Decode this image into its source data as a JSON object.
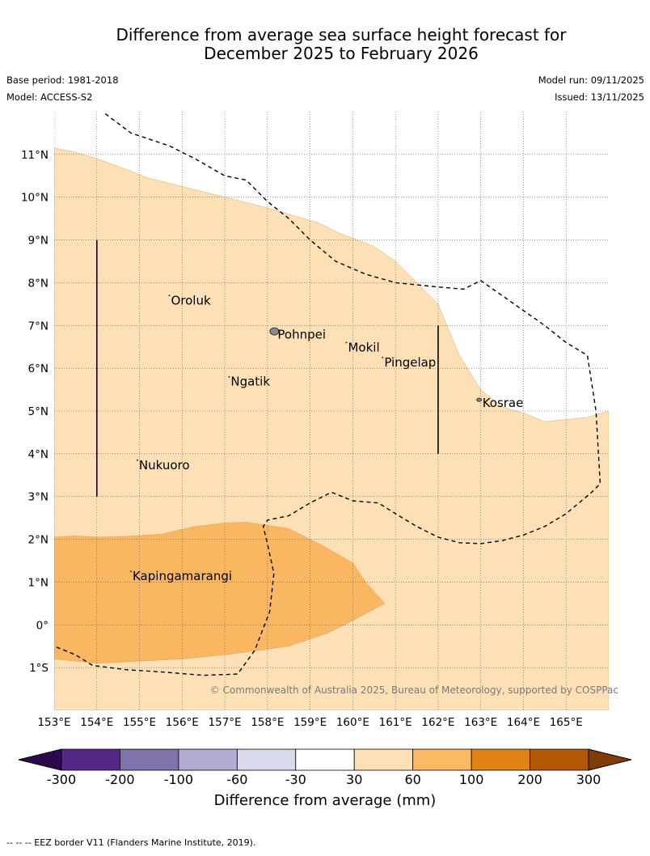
{
  "title": {
    "line1": "Difference from average sea surface height forecast for",
    "line2": "December 2025 to February 2026"
  },
  "meta": {
    "base_period": "Base period: 1981-2018",
    "model": "Model: ACCESS-S2",
    "model_run": "Model run: 09/11/2025",
    "issued": "Issued: 13/11/2025"
  },
  "map": {
    "lon_range": [
      153,
      166
    ],
    "lat_range": [
      -2,
      12
    ],
    "lon_ticks": [
      {
        "value": 153,
        "label": "153°E"
      },
      {
        "value": 154,
        "label": "154°E"
      },
      {
        "value": 155,
        "label": "155°E"
      },
      {
        "value": 156,
        "label": "156°E"
      },
      {
        "value": 157,
        "label": "157°E"
      },
      {
        "value": 158,
        "label": "158°E"
      },
      {
        "value": 159,
        "label": "159°E"
      },
      {
        "value": 160,
        "label": "160°E"
      },
      {
        "value": 161,
        "label": "161°E"
      },
      {
        "value": 162,
        "label": "162°E"
      },
      {
        "value": 163,
        "label": "163°E"
      },
      {
        "value": 164,
        "label": "164°E"
      },
      {
        "value": 165,
        "label": "165°E"
      }
    ],
    "lat_ticks": [
      {
        "value": 11,
        "label": "11°N"
      },
      {
        "value": 10,
        "label": "10°N"
      },
      {
        "value": 9,
        "label": "9°N"
      },
      {
        "value": 8,
        "label": "8°N"
      },
      {
        "value": 7,
        "label": "7°N"
      },
      {
        "value": 6,
        "label": "6°N"
      },
      {
        "value": 5,
        "label": "5°N"
      },
      {
        "value": 4,
        "label": "4°N"
      },
      {
        "value": 3,
        "label": "3°N"
      },
      {
        "value": 2,
        "label": "2°N"
      },
      {
        "value": 1,
        "label": "1°N"
      },
      {
        "value": 0,
        "label": "0°"
      },
      {
        "value": -1,
        "label": "1°S"
      }
    ],
    "places": [
      {
        "name": "Oroluk",
        "lon": 155.7,
        "lat": 7.7
      },
      {
        "name": "Pohnpei",
        "lon": 158.2,
        "lat": 6.9
      },
      {
        "name": "Mokil",
        "lon": 159.85,
        "lat": 6.6
      },
      {
        "name": "Pingelap",
        "lon": 160.7,
        "lat": 6.25
      },
      {
        "name": "Ngatik",
        "lon": 157.1,
        "lat": 5.8
      },
      {
        "name": "Kosrae",
        "lon": 163.0,
        "lat": 5.3
      },
      {
        "name": "Nukuoro",
        "lon": 154.95,
        "lat": 3.85
      },
      {
        "name": "Kapingamarangi",
        "lon": 154.8,
        "lat": 1.25
      }
    ],
    "copyright": "© Commonwealth of Australia 2025, Bureau of Meteorology, supported by COSPPac",
    "regions": [
      {
        "name": "anomaly-30-60",
        "color": "#fde0b6",
        "points": [
          [
            153,
            11.15
          ],
          [
            153.5,
            11.05
          ],
          [
            154,
            10.9
          ],
          [
            154.7,
            10.65
          ],
          [
            155.2,
            10.45
          ],
          [
            156,
            10.25
          ],
          [
            157,
            10
          ],
          [
            158,
            9.75
          ],
          [
            158.5,
            9.6
          ],
          [
            159.2,
            9.4
          ],
          [
            159.7,
            9.15
          ],
          [
            160.5,
            8.85
          ],
          [
            161,
            8.5
          ],
          [
            161.5,
            8
          ],
          [
            162,
            7.5
          ],
          [
            162.5,
            6.3
          ],
          [
            163,
            5.5
          ],
          [
            163.5,
            5.1
          ],
          [
            164,
            4.95
          ],
          [
            164.5,
            4.75
          ],
          [
            165,
            4.8
          ],
          [
            165.5,
            4.85
          ],
          [
            166,
            5
          ],
          [
            166,
            -2
          ],
          [
            153,
            -2
          ]
        ]
      },
      {
        "name": "anomaly-60-100",
        "color": "#fbb661",
        "points": [
          [
            153,
            2.05
          ],
          [
            153.5,
            2.08
          ],
          [
            154,
            2.05
          ],
          [
            154.7,
            2.07
          ],
          [
            155.5,
            2.12
          ],
          [
            156.3,
            2.3
          ],
          [
            157,
            2.38
          ],
          [
            157.5,
            2.4
          ],
          [
            158.5,
            2.25
          ],
          [
            159.3,
            1.85
          ],
          [
            160,
            1.45
          ],
          [
            160.3,
            1
          ],
          [
            160.75,
            0.5
          ],
          [
            160,
            0.1
          ],
          [
            159.4,
            -0.2
          ],
          [
            158.5,
            -0.5
          ],
          [
            157.8,
            -0.6
          ],
          [
            157,
            -0.7
          ],
          [
            156,
            -0.8
          ],
          [
            155,
            -0.85
          ],
          [
            154,
            -0.9
          ],
          [
            153.5,
            -0.85
          ],
          [
            153,
            -0.8
          ]
        ]
      }
    ],
    "eez_border": [
      [
        [
          154.2,
          11.95
        ],
        [
          154.8,
          11.5
        ],
        [
          155.7,
          11.2
        ],
        [
          156.3,
          10.9
        ],
        [
          157,
          10.5
        ],
        [
          157.5,
          10.4
        ],
        [
          158,
          9.9
        ],
        [
          158.5,
          9.5
        ],
        [
          159,
          9
        ],
        [
          159.6,
          8.5
        ],
        [
          160.3,
          8.2
        ],
        [
          161,
          8
        ],
        [
          162,
          7.9
        ],
        [
          162.6,
          7.85
        ],
        [
          163,
          8.05
        ],
        [
          163.5,
          7.7
        ],
        [
          164,
          7.35
        ],
        [
          164.5,
          7
        ],
        [
          165,
          6.6
        ],
        [
          165.5,
          6.3
        ],
        [
          165.7,
          5
        ],
        [
          165.8,
          3.3
        ],
        [
          165.6,
          3.1
        ],
        [
          165,
          2.6
        ],
        [
          164.5,
          2.3
        ],
        [
          164,
          2.1
        ],
        [
          163.5,
          1.97
        ],
        [
          163,
          1.9
        ],
        [
          162.5,
          1.92
        ],
        [
          162,
          2.05
        ],
        [
          161.5,
          2.3
        ],
        [
          161,
          2.6
        ],
        [
          160.6,
          2.85
        ],
        [
          160,
          2.9
        ],
        [
          159.5,
          3.1
        ],
        [
          159,
          2.85
        ],
        [
          158.5,
          2.55
        ],
        [
          158,
          2.45
        ],
        [
          157.9,
          2.3
        ],
        [
          158,
          1.9
        ],
        [
          158.15,
          1.2
        ],
        [
          158.05,
          0.3
        ],
        [
          157.7,
          -0.6
        ],
        [
          157.3,
          -1.15
        ],
        [
          156.5,
          -1.18
        ],
        [
          155.5,
          -1.1
        ],
        [
          154.7,
          -1.05
        ],
        [
          153.9,
          -0.95
        ],
        [
          153.5,
          -0.7
        ],
        [
          153,
          -0.5
        ]
      ]
    ],
    "meridian_lines": [
      {
        "lon": 154,
        "lat_from": 3.0,
        "lat_to": 9.0
      },
      {
        "lon": 162,
        "lat_from": 4.0,
        "lat_to": 7.0
      }
    ]
  },
  "colorbar": {
    "label": "Difference from average (mm)",
    "ticks": [
      "-300",
      "-200",
      "-100",
      "-60",
      "-30",
      "30",
      "60",
      "100",
      "200",
      "300"
    ],
    "colors": [
      "#2d0a4e",
      "#542788",
      "#8073ac",
      "#b2abd2",
      "#d8daeb",
      "#ffffff",
      "#fee0b6",
      "#fdb863",
      "#e08214",
      "#b35806",
      "#7f3b08"
    ]
  },
  "footer": "--  --  -- EEZ border V11 (Flanders Marine Institute, 2019)."
}
